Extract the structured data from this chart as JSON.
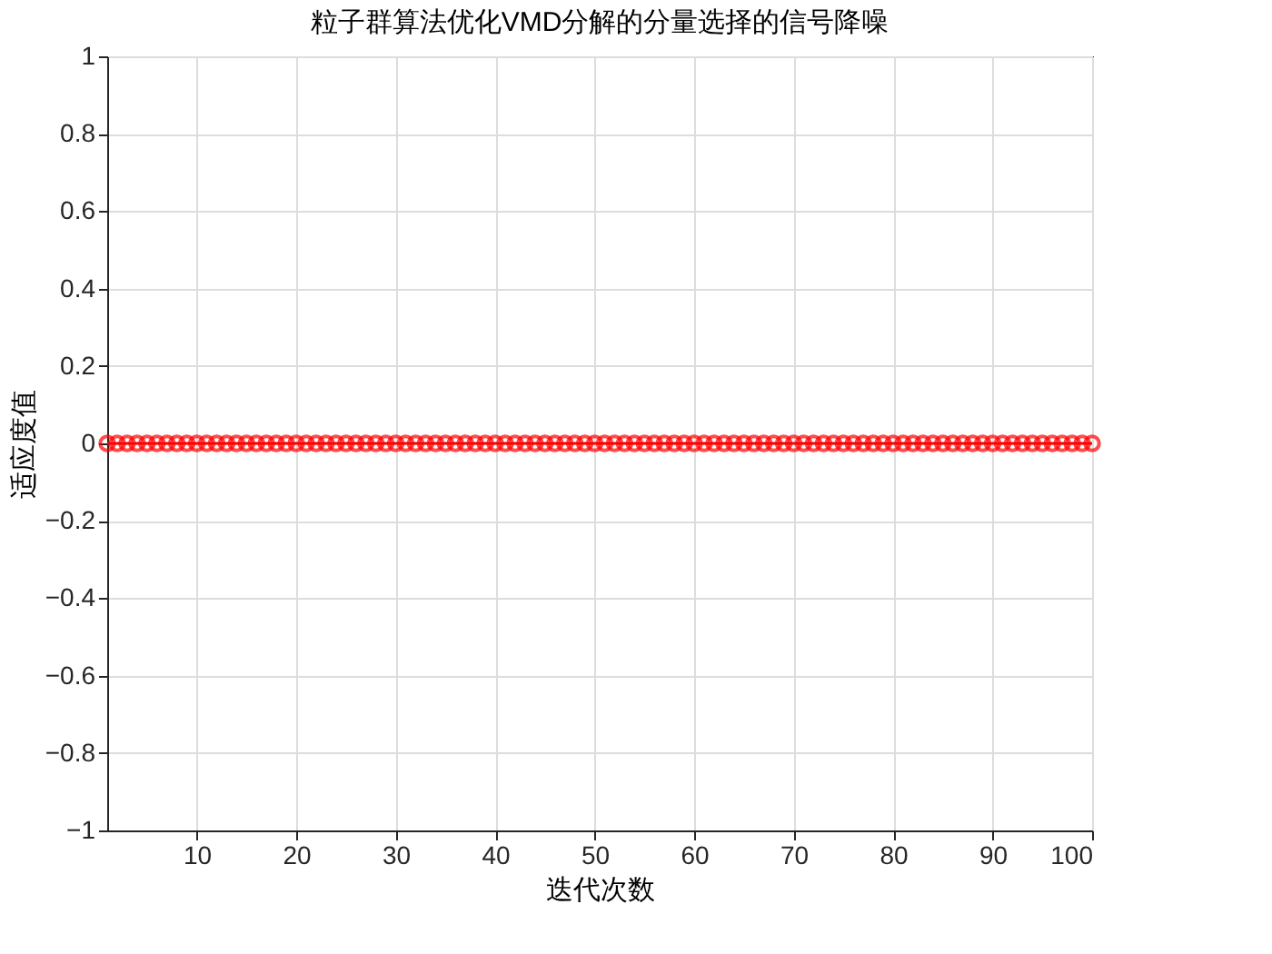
{
  "chart_data": {
    "type": "line",
    "title": "粒子群算法优化VMD分解的分量选择的信号降噪",
    "xlabel": "迭代次数",
    "ylabel": "适应度值",
    "x": [
      1,
      2,
      3,
      4,
      5,
      6,
      7,
      8,
      9,
      10,
      11,
      12,
      13,
      14,
      15,
      16,
      17,
      18,
      19,
      20,
      21,
      22,
      23,
      24,
      25,
      26,
      27,
      28,
      29,
      30,
      31,
      32,
      33,
      34,
      35,
      36,
      37,
      38,
      39,
      40,
      41,
      42,
      43,
      44,
      45,
      46,
      47,
      48,
      49,
      50,
      51,
      52,
      53,
      54,
      55,
      56,
      57,
      58,
      59,
      60,
      61,
      62,
      63,
      64,
      65,
      66,
      67,
      68,
      69,
      70,
      71,
      72,
      73,
      74,
      75,
      76,
      77,
      78,
      79,
      80,
      81,
      82,
      83,
      84,
      85,
      86,
      87,
      88,
      89,
      90,
      91,
      92,
      93,
      94,
      95,
      96,
      97,
      98,
      99,
      100
    ],
    "series": [
      {
        "color": "#ff0000",
        "values": [
          0,
          0,
          0,
          0,
          0,
          0,
          0,
          0,
          0,
          0,
          0,
          0,
          0,
          0,
          0,
          0,
          0,
          0,
          0,
          0,
          0,
          0,
          0,
          0,
          0,
          0,
          0,
          0,
          0,
          0,
          0,
          0,
          0,
          0,
          0,
          0,
          0,
          0,
          0,
          0,
          0,
          0,
          0,
          0,
          0,
          0,
          0,
          0,
          0,
          0,
          0,
          0,
          0,
          0,
          0,
          0,
          0,
          0,
          0,
          0,
          0,
          0,
          0,
          0,
          0,
          0,
          0,
          0,
          0,
          0,
          0,
          0,
          0,
          0,
          0,
          0,
          0,
          0,
          0,
          0,
          0,
          0,
          0,
          0,
          0,
          0,
          0,
          0,
          0,
          0,
          0,
          0,
          0,
          0,
          0,
          0,
          0,
          0,
          0,
          0
        ]
      }
    ],
    "xlim": [
      1,
      100
    ],
    "xticks": [
      10,
      20,
      30,
      40,
      50,
      60,
      70,
      80,
      90,
      100
    ],
    "ylim": [
      -1,
      1
    ],
    "yticks": [
      -1,
      -0.8,
      -0.6,
      -0.4,
      -0.2,
      0,
      0.2,
      0.4,
      0.6,
      0.8,
      1
    ],
    "grid": true,
    "marker": "circle",
    "line_style": "solid"
  }
}
